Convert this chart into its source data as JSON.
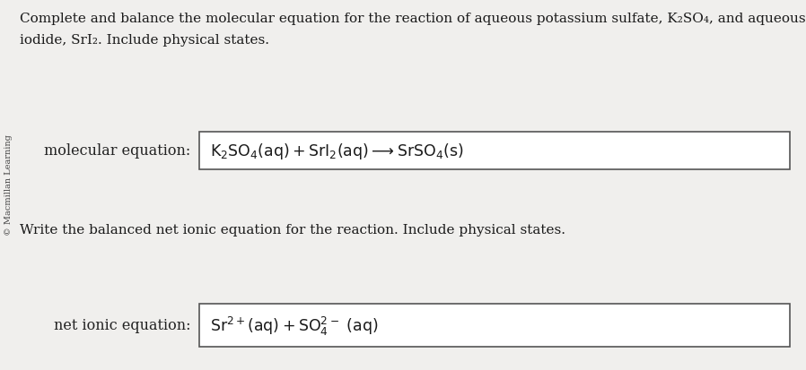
{
  "bg_color": "#f0efed",
  "inner_bg": "#f5f4f2",
  "title_line1": "Complete and balance the molecular equation for the reaction of aqueous potassium sulfate, K₂SO₄, and aqueous strontium",
  "title_line2": "iodide, SrI₂. Include physical states.",
  "sidebar_text": "© Macmillan Learning",
  "mol_label": "molecular equation:",
  "subtitle": "Write the balanced net ionic equation for the reaction. Include physical states.",
  "net_label": "net ionic equation:",
  "box_color": "#ffffff",
  "box_edge_color": "#555555",
  "text_color": "#1a1a1a",
  "label_color": "#222222",
  "font_size_title": 11.0,
  "font_size_eq": 12.5,
  "font_size_label": 11.5,
  "sidebar_fontsize": 7.0
}
